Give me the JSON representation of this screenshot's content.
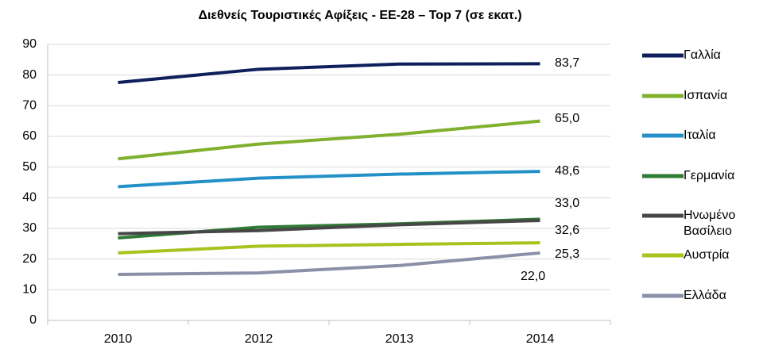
{
  "chart_data": {
    "type": "line",
    "title": "Διεθνείς Τουριστικές Αφίξεις - ΕΕ-28 – Top 7 (σε εκατ.)",
    "categories": [
      "2010",
      "2012",
      "2013",
      "2014"
    ],
    "ylim": [
      0,
      90
    ],
    "yticks": [
      0,
      10,
      20,
      30,
      40,
      50,
      60,
      70,
      80,
      90
    ],
    "grid": true,
    "legend": "right",
    "series": [
      {
        "name": "Γαλλία",
        "color": "#0e1f5b",
        "values": [
          77.6,
          81.9,
          83.6,
          83.7
        ],
        "value_labels": [
          null,
          null,
          null,
          "83,7"
        ]
      },
      {
        "name": "Ισπανία",
        "color": "#7fb02e",
        "values": [
          52.7,
          57.5,
          60.7,
          65.0
        ],
        "value_labels": [
          null,
          null,
          null,
          "65,0"
        ]
      },
      {
        "name": "Ιταλία",
        "color": "#2490c8",
        "values": [
          43.6,
          46.4,
          47.7,
          48.6
        ],
        "value_labels": [
          null,
          null,
          null,
          "48,6"
        ]
      },
      {
        "name": "Γερμανία",
        "color": "#2f7a34",
        "values": [
          26.9,
          30.4,
          31.5,
          33.0
        ],
        "value_labels": [
          null,
          null,
          null,
          "33,0"
        ]
      },
      {
        "name": "Ηνωμένο Βασίλειο",
        "color": "#474747",
        "values": [
          28.3,
          29.3,
          31.2,
          32.6
        ],
        "value_labels": [
          null,
          null,
          null,
          "32,6"
        ]
      },
      {
        "name": "Αυστρία",
        "color": "#a9c21e",
        "values": [
          22.0,
          24.2,
          24.8,
          25.3
        ],
        "value_labels": [
          null,
          null,
          null,
          "25,3"
        ]
      },
      {
        "name": "Ελλάδα",
        "color": "#8b90a8",
        "values": [
          15.0,
          15.5,
          17.9,
          22.0
        ],
        "value_labels": [
          null,
          null,
          null,
          "22,0"
        ]
      }
    ]
  }
}
